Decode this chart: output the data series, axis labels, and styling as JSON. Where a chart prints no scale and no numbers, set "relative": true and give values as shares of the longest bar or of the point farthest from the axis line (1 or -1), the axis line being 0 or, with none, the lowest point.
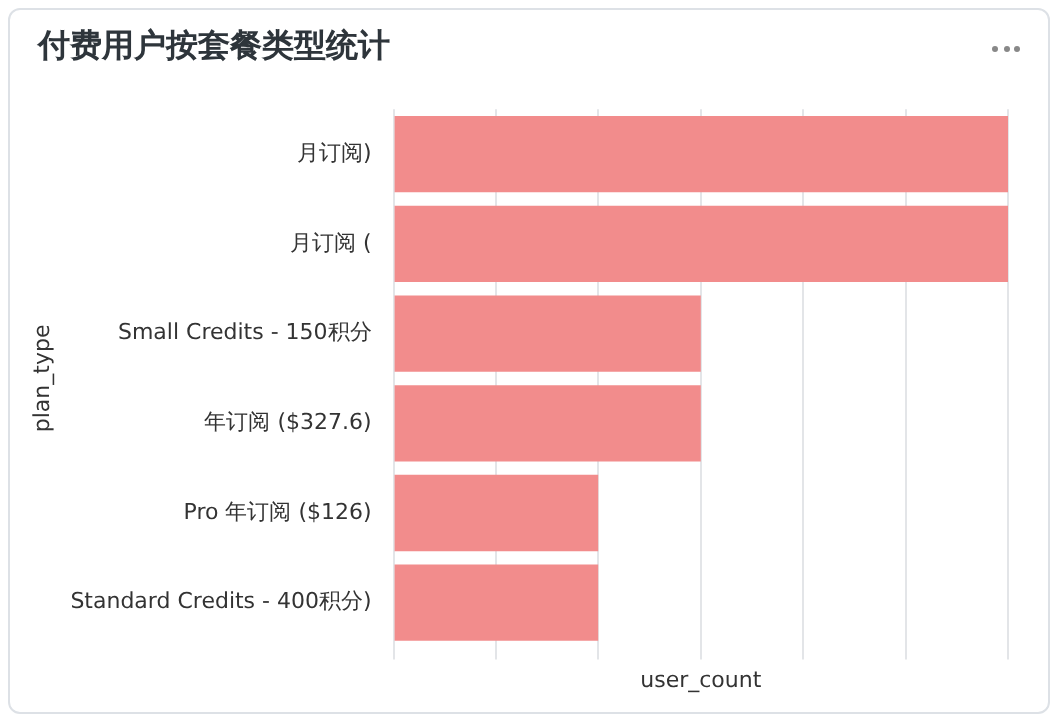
{
  "chart_data": {
    "type": "bar",
    "orientation": "horizontal",
    "relative": true,
    "title": "付费用户按套餐类型统计",
    "xlabel": "user_count",
    "ylabel": "plan_type",
    "categories": [
      "月订阅)",
      "月订阅 (",
      "Small Credits - 150积分",
      "年订阅 ($327.6)",
      "Pro 年订阅 ($126)",
      "Standard Credits - 400积分)"
    ],
    "values": [
      1,
      1,
      0.5,
      0.5,
      0.333,
      0.333
    ],
    "color": "#f28c8c",
    "grid": "x",
    "legend": false
  }
}
